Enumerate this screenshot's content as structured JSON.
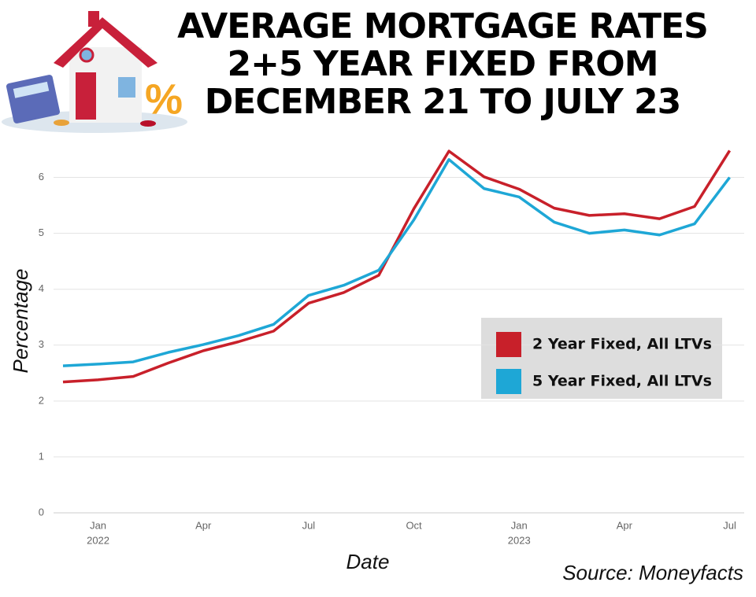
{
  "chart_data": {
    "type": "line",
    "title": [
      "AVERAGE MORTGAGE RATES",
      "2+5 YEAR FIXED FROM",
      "DECEMBER 21 TO JULY 23"
    ],
    "x_label": "Date",
    "y_label": "Percentage",
    "source": "Source: Moneyfacts",
    "x": [
      "2021-12",
      "2022-01",
      "2022-02",
      "2022-03",
      "2022-04",
      "2022-05",
      "2022-06",
      "2022-07",
      "2022-08",
      "2022-09",
      "2022-10",
      "2022-11",
      "2022-12",
      "2023-01",
      "2023-02",
      "2023-03",
      "2023-04",
      "2023-05",
      "2023-06",
      "2023-07"
    ],
    "xticks": [
      {
        "value": "2022-01",
        "label": "Jan",
        "year": "2022"
      },
      {
        "value": "2022-04",
        "label": "Apr"
      },
      {
        "value": "2022-07",
        "label": "Jul"
      },
      {
        "value": "2022-10",
        "label": "Oct"
      },
      {
        "value": "2023-01",
        "label": "Jan",
        "year": "2023"
      },
      {
        "value": "2023-04",
        "label": "Apr"
      },
      {
        "value": "2023-07",
        "label": "Jul"
      }
    ],
    "ylim": [
      0,
      6.5
    ],
    "yticks": [
      0,
      1,
      2,
      3,
      4,
      5,
      6
    ],
    "grid": true,
    "series": [
      {
        "name": "2 Year Fixed, All LTVs",
        "color": "#c8202a",
        "values": [
          2.34,
          2.38,
          2.44,
          2.68,
          2.9,
          3.06,
          3.25,
          3.75,
          3.94,
          4.25,
          5.44,
          6.47,
          6.01,
          5.79,
          5.45,
          5.32,
          5.35,
          5.26,
          5.48,
          6.48
        ]
      },
      {
        "name": "5 Year Fixed, All LTVs",
        "color": "#1ea7d6",
        "values": [
          2.63,
          2.66,
          2.7,
          2.87,
          3.01,
          3.17,
          3.37,
          3.89,
          4.07,
          4.34,
          5.24,
          6.32,
          5.8,
          5.65,
          5.2,
          5.0,
          5.06,
          4.97,
          5.17,
          6.0
        ]
      }
    ]
  }
}
